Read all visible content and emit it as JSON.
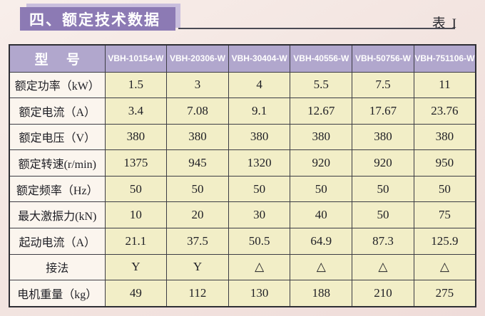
{
  "page": {
    "title": "四、额定技术数据",
    "table_ref": "表 I"
  },
  "table": {
    "header": {
      "model_label": "型 号",
      "models": [
        "VBH-10154-W",
        "VBH-20306-W",
        "VBH-30404-W",
        "VBH-40556-W",
        "VBH-50756-W",
        "VBH-751106-W"
      ]
    },
    "rows": [
      {
        "label": "额定功率（kW）",
        "values": [
          "1.5",
          "3",
          "4",
          "5.5",
          "7.5",
          "11"
        ]
      },
      {
        "label": "额定电流（A）",
        "values": [
          "3.4",
          "7.08",
          "9.1",
          "12.67",
          "17.67",
          "23.76"
        ]
      },
      {
        "label": "额定电压（V）",
        "values": [
          "380",
          "380",
          "380",
          "380",
          "380",
          "380"
        ]
      },
      {
        "label": "额定转速(r/min)",
        "values": [
          "1375",
          "945",
          "1320",
          "920",
          "920",
          "950"
        ]
      },
      {
        "label": "额定频率（Hz）",
        "values": [
          "50",
          "50",
          "50",
          "50",
          "50",
          "50"
        ]
      },
      {
        "label": "最大激振力(kN)",
        "values": [
          "10",
          "20",
          "30",
          "40",
          "50",
          "75"
        ]
      },
      {
        "label": "起动电流（A）",
        "values": [
          "21.1",
          "37.5",
          "50.5",
          "64.9",
          "87.3",
          "125.9"
        ]
      },
      {
        "label": "接法",
        "values": [
          "Y",
          "Y",
          "△",
          "△",
          "△",
          "△"
        ]
      },
      {
        "label": "电机重量（kg）",
        "values": [
          "49",
          "112",
          "130",
          "188",
          "210",
          "275"
        ]
      }
    ]
  },
  "colors": {
    "page_bg": "#f3e5e1",
    "banner_bg": "#8c7ab4",
    "banner_shadow": "#c9bedd",
    "table_header_bg": "#b1a7cd",
    "label_cell_bg": "#fbf5ee",
    "data_cell_bg": "#f2eec7",
    "border": "#3c3c44"
  }
}
